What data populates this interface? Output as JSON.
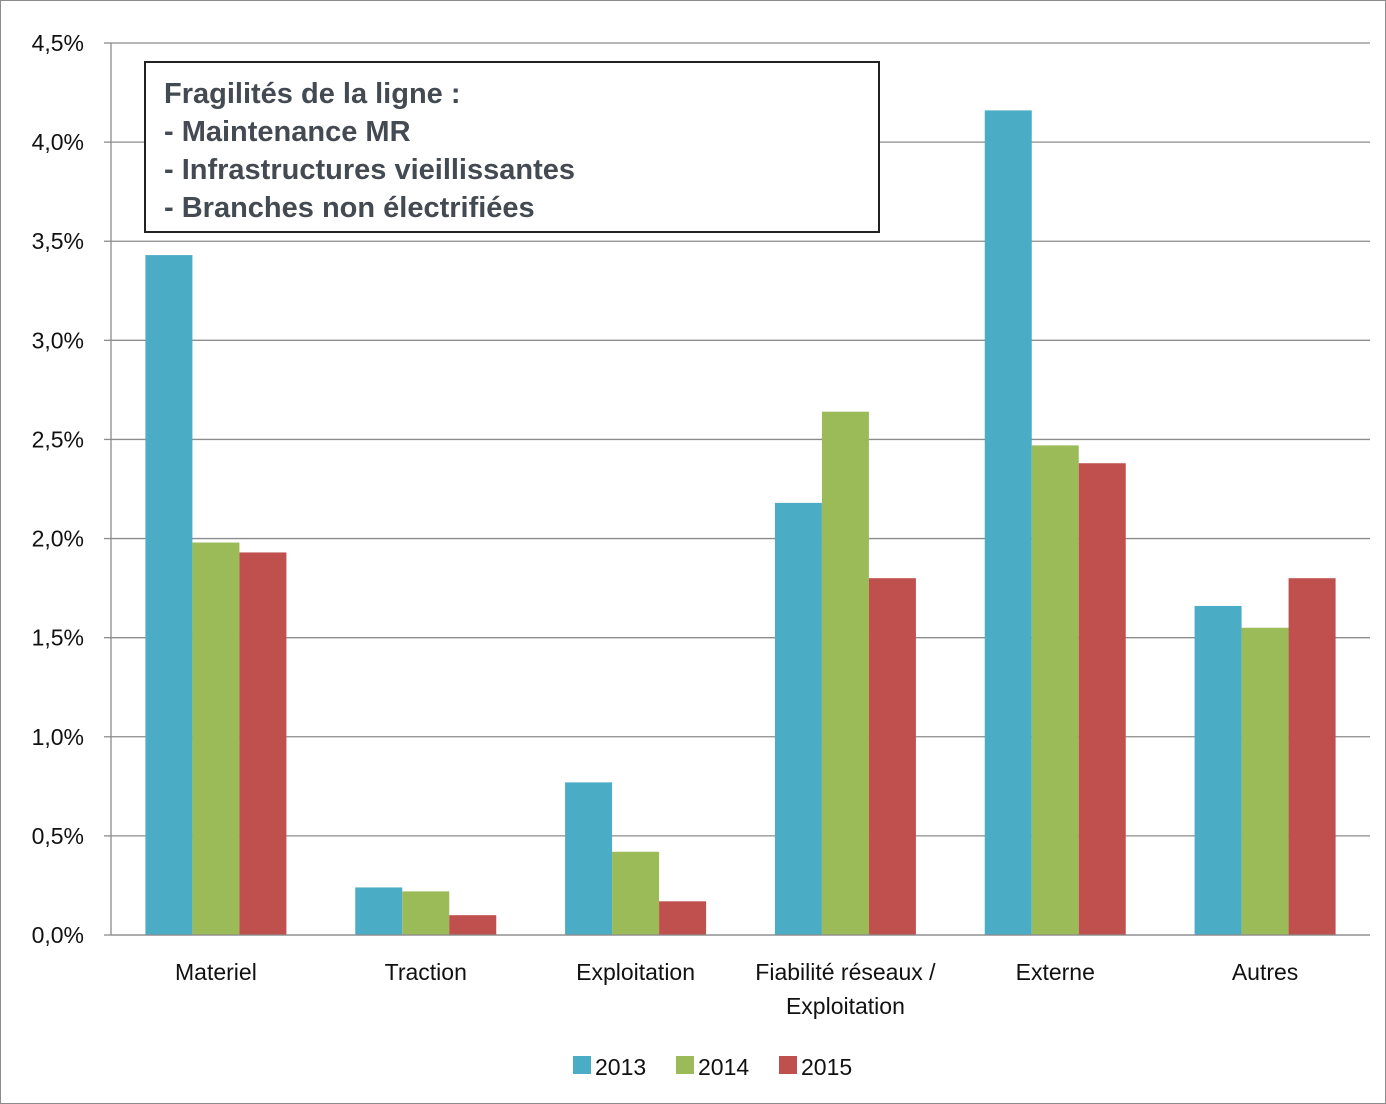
{
  "chart_data": {
    "type": "bar",
    "categories": [
      [
        "Materiel"
      ],
      [
        "Traction"
      ],
      [
        "Exploitation"
      ],
      [
        "Fiabilité réseaux /",
        "Exploitation"
      ],
      [
        "Externe"
      ],
      [
        "Autres"
      ]
    ],
    "series": [
      {
        "name": "2013",
        "color": "#4bacc6",
        "values": [
          3.43,
          0.24,
          0.77,
          2.18,
          4.16,
          1.66
        ]
      },
      {
        "name": "2014",
        "color": "#9bbb59",
        "values": [
          1.98,
          0.22,
          0.42,
          2.64,
          2.47,
          1.55
        ]
      },
      {
        "name": "2015",
        "color": "#c0504d",
        "values": [
          1.93,
          0.1,
          0.17,
          1.8,
          2.38,
          1.8
        ]
      }
    ],
    "ylim": [
      0,
      4.5
    ],
    "yticks": [
      0,
      0.5,
      1.0,
      1.5,
      2.0,
      2.5,
      3.0,
      3.5,
      4.0,
      4.5
    ],
    "ytick_labels": [
      "0,0%",
      "0,5%",
      "1,0%",
      "1,5%",
      "2,0%",
      "2,5%",
      "3,0%",
      "3,5%",
      "4,0%",
      "4,5%"
    ],
    "grid": true,
    "legend_position": "bottom",
    "annotation": {
      "lines": [
        "Fragilités de la ligne :",
        "- Maintenance MR",
        "- Infrastructures vieillissantes",
        "- Branches non électrifiées"
      ]
    }
  }
}
